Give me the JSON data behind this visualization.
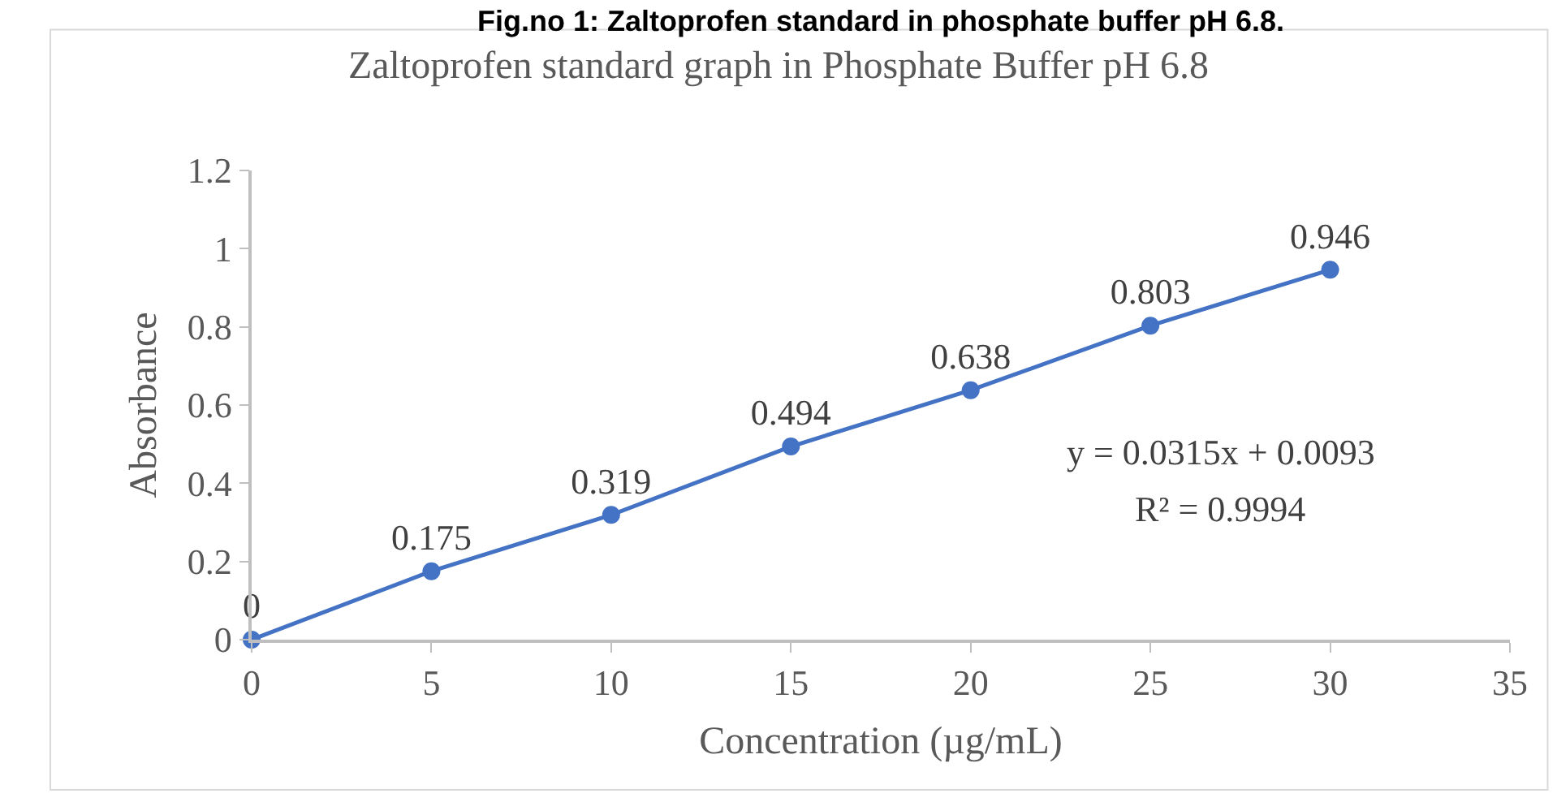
{
  "chart_data": {
    "type": "line",
    "title": "Zaltoprofen standard graph in Phosphate Buffer pH 6.8",
    "xlabel": "Concentration (µg/mL)",
    "ylabel": "Absorbance",
    "x": [
      0,
      5,
      10,
      15,
      20,
      25,
      30
    ],
    "series": [
      {
        "color": "#4472c4",
        "values": [
          0,
          0.175,
          0.319,
          0.494,
          0.638,
          0.803,
          0.946
        ]
      }
    ],
    "xlim": [
      0,
      35
    ],
    "xticks": [
      0,
      5,
      10,
      15,
      20,
      25,
      30,
      35
    ],
    "ylim": [
      0,
      1.2
    ],
    "yticks": [
      0,
      0.2,
      0.4,
      0.6,
      0.8,
      1,
      1.2
    ],
    "data_labels": true,
    "marker": "circle",
    "line_style": "solid",
    "legend": false,
    "annotations": [
      "Fig.no 1: Zaltoprofen standard in phosphate buffer pH 6.8.",
      "y = 0.0315x + 0.0093",
      "R² = 0.9994"
    ]
  }
}
